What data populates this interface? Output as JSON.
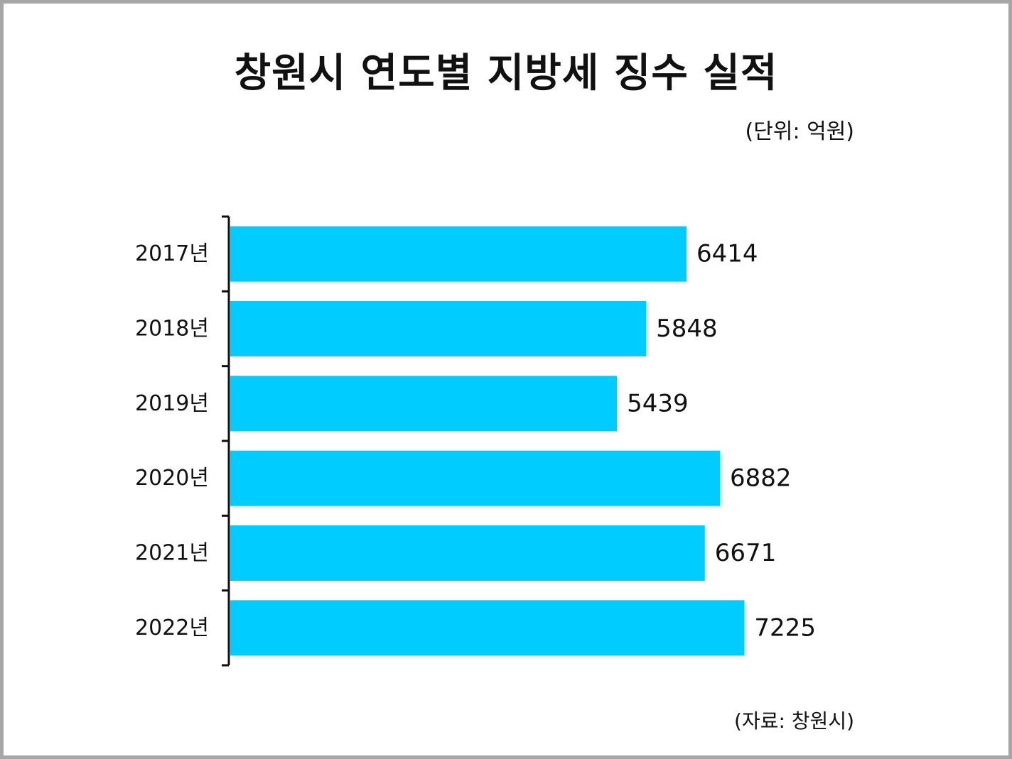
{
  "title": "창원시 연도별 지방세 징수 실적",
  "unit_note": "(단위: 억원)",
  "source_note": "(자료: 창원시)",
  "colors": {
    "bar": "#00ccff",
    "axis": "#111111",
    "border": "#a6a6a6"
  },
  "chart_data": {
    "type": "bar",
    "orientation": "horizontal",
    "categories": [
      "2017년",
      "2018년",
      "2019년",
      "2020년",
      "2021년",
      "2022년"
    ],
    "values": [
      6414,
      5848,
      5439,
      6882,
      6671,
      7225
    ],
    "title": "창원시 연도별 지방세 징수 실적",
    "xlabel": "",
    "ylabel": "",
    "xlim": [
      0,
      8000
    ],
    "grid": false,
    "legend": "none"
  }
}
